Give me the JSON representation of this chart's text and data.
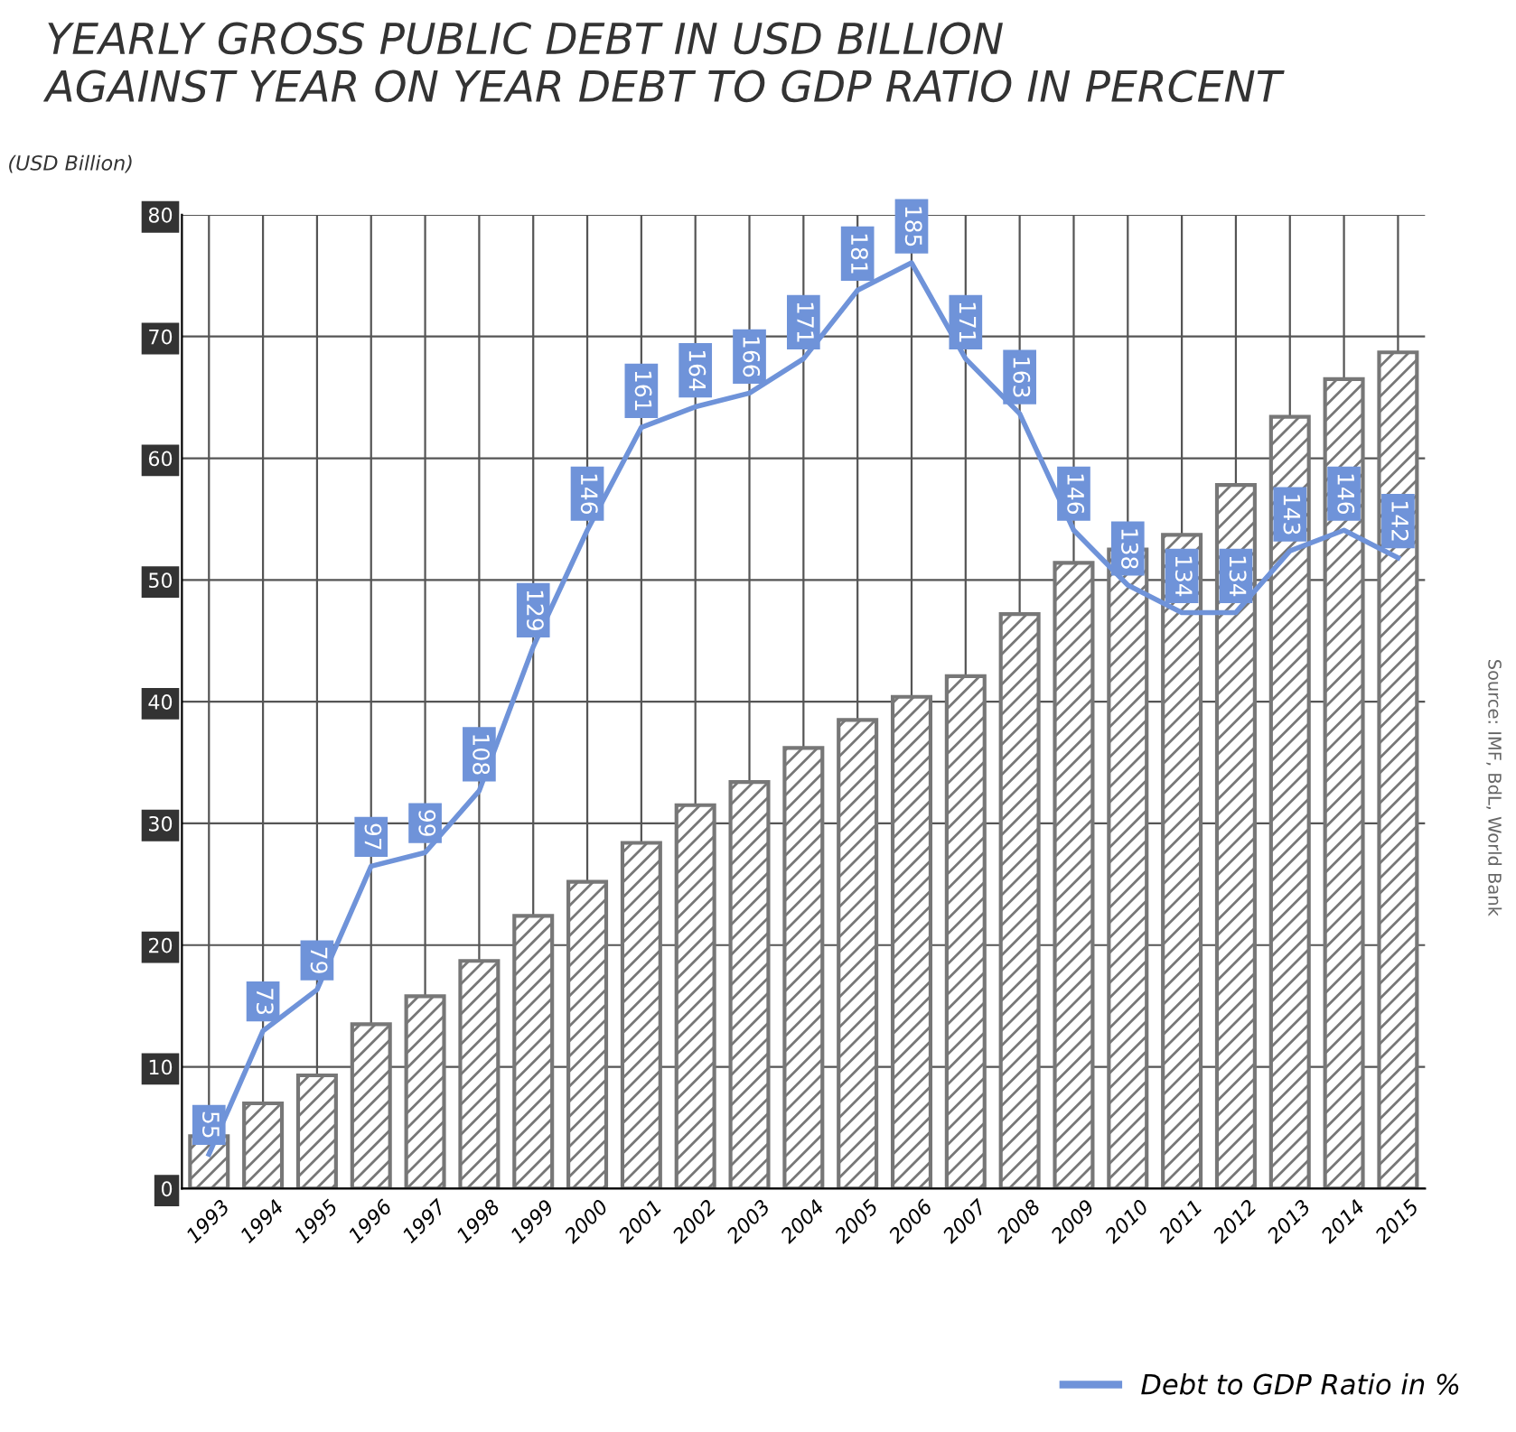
{
  "chart_data": {
    "type": "bar",
    "title": "YEARLY GROSS PUBLIC DEBT IN USD BILLION\nAGAINST YEAR ON YEAR DEBT TO GDP RATIO IN PERCENT",
    "ylabel": "(USD Billion)",
    "categories": [
      "1993",
      "1994",
      "1995",
      "1996",
      "1997",
      "1998",
      "1999",
      "2000",
      "2001",
      "2002",
      "2003",
      "2004",
      "2005",
      "2006",
      "2007",
      "2008",
      "2009",
      "2010",
      "2011",
      "2012",
      "2013",
      "2014",
      "2015"
    ],
    "series": [
      {
        "color": "#777777",
        "values": [
          4.3,
          7.0,
          9.3,
          13.5,
          15.8,
          18.7,
          22.4,
          25.2,
          28.4,
          31.5,
          33.4,
          36.2,
          38.5,
          40.4,
          42.1,
          47.2,
          51.4,
          52.5,
          53.7,
          57.8,
          63.4,
          66.5,
          68.7
        ]
      },
      {
        "type": "line",
        "axis": "y2",
        "name": "Debt to GDP Ratio in %",
        "color": "#6f93d9",
        "values": [
          55,
          73,
          79,
          97,
          99,
          108,
          129,
          146,
          161,
          164,
          166,
          171,
          181,
          185,
          171,
          163,
          146,
          138,
          134,
          134,
          143,
          146,
          142
        ],
        "value_labels": [
          "55",
          "73",
          "79",
          "97",
          "99",
          "108",
          "129",
          "146",
          "161",
          "164",
          "166",
          "171",
          "181",
          "185",
          "171",
          "163",
          "146",
          "138",
          "134",
          "134",
          "143",
          "146",
          "142"
        ]
      }
    ],
    "ylim": [
      0,
      80
    ],
    "yticks": [
      0,
      10,
      20,
      30,
      40,
      50,
      60,
      70,
      80
    ],
    "y2lim": [
      50,
      192
    ],
    "grid": true,
    "legend": "bottom right",
    "marker": "none",
    "line_style": "solid",
    "annotations": [
      "Source: IMF, BdL, World Bank"
    ]
  }
}
